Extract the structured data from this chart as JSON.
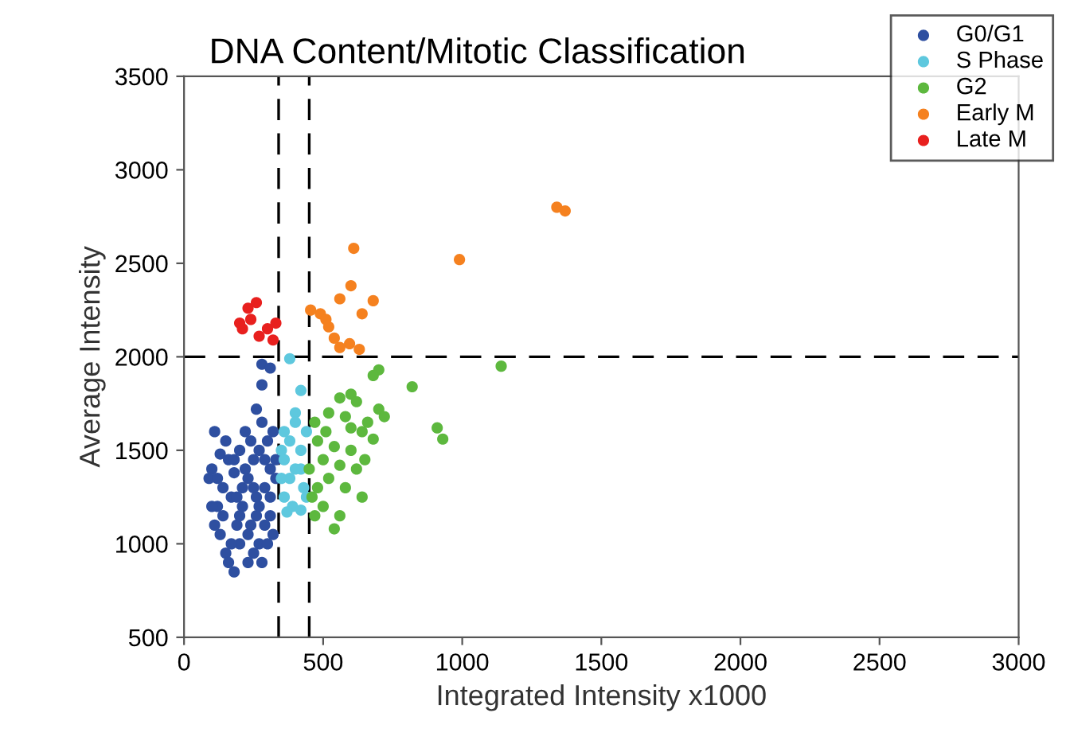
{
  "chart_data": {
    "type": "scatter",
    "title": "DNA Content/Mitotic Classification",
    "xlabel": "Integrated Intensity x1000",
    "ylabel": "Average Intensity",
    "xlim": [
      0,
      3000
    ],
    "xticks": [
      0,
      500,
      1000,
      1500,
      2000,
      2500,
      3000
    ],
    "ylim": [
      500,
      3500
    ],
    "yticks": [
      500,
      1000,
      1500,
      2000,
      2500,
      3000,
      3500
    ],
    "grid": false,
    "legend": "top right",
    "marker": "circle",
    "ref_lines": [
      {
        "axis": "x",
        "value": 340,
        "label": null,
        "color": "#000000",
        "line_style": "dashed"
      },
      {
        "axis": "x",
        "value": 450,
        "label": null,
        "color": "#000000",
        "line_style": "dashed"
      },
      {
        "axis": "y",
        "value": 2000,
        "label": null,
        "color": "#000000",
        "line_style": "dashed"
      }
    ],
    "series": [
      {
        "name": "G0/G1",
        "color": "#2e4fa0",
        "x": [
          280,
          310,
          280,
          260,
          280,
          100,
          90,
          130,
          150,
          110,
          160,
          200,
          180,
          120,
          140,
          170,
          220,
          240,
          210,
          250,
          190,
          230,
          270,
          300,
          320,
          310,
          260,
          290,
          330,
          200,
          150,
          130,
          110,
          100,
          160,
          180,
          230,
          250,
          270,
          290,
          310,
          320,
          210,
          240,
          140,
          170,
          190,
          260,
          280,
          300,
          220,
          250,
          120,
          200,
          230,
          270,
          310,
          330,
          180,
          290
        ],
        "values": [
          1960,
          1940,
          1850,
          1720,
          1650,
          1400,
          1350,
          1480,
          1550,
          1600,
          1450,
          1500,
          1380,
          1200,
          1150,
          1250,
          1600,
          1550,
          1300,
          1450,
          1100,
          1350,
          1500,
          1550,
          1600,
          1400,
          1250,
          1300,
          1450,
          1000,
          950,
          1050,
          1100,
          1200,
          900,
          850,
          900,
          950,
          1000,
          1100,
          1150,
          1050,
          1200,
          1100,
          1300,
          1000,
          1250,
          1150,
          900,
          1000,
          1400,
          1300,
          1350,
          1150,
          1050,
          1200,
          1250,
          1350,
          1450,
          1450
        ]
      },
      {
        "name": "S Phase",
        "color": "#5ec8de",
        "x": [
          380,
          420,
          400,
          360,
          380,
          420,
          360,
          400,
          380,
          430,
          360,
          390,
          420,
          370,
          400,
          440,
          350,
          420,
          440,
          350
        ],
        "values": [
          1990,
          1820,
          1700,
          1600,
          1550,
          1500,
          1450,
          1400,
          1350,
          1300,
          1250,
          1200,
          1180,
          1170,
          1650,
          1600,
          1500,
          1400,
          1250,
          1350
        ]
      },
      {
        "name": "G2",
        "color": "#5db83e",
        "x": [
          1140,
          700,
          680,
          820,
          910,
          930,
          600,
          560,
          620,
          520,
          580,
          660,
          700,
          640,
          480,
          540,
          600,
          680,
          500,
          560,
          620,
          520,
          480,
          580,
          640,
          500,
          560,
          540,
          460,
          470,
          510,
          600,
          720,
          450,
          470,
          650
        ],
        "values": [
          1950,
          1930,
          1900,
          1840,
          1620,
          1560,
          1800,
          1780,
          1760,
          1700,
          1680,
          1650,
          1720,
          1600,
          1550,
          1520,
          1500,
          1560,
          1450,
          1420,
          1400,
          1350,
          1300,
          1300,
          1250,
          1200,
          1150,
          1080,
          1250,
          1650,
          1600,
          1620,
          1680,
          1400,
          1150,
          1450
        ]
      },
      {
        "name": "Early M",
        "color": "#f5811f",
        "x": [
          1340,
          1370,
          990,
          610,
          600,
          560,
          680,
          640,
          490,
          520,
          540,
          595,
          630,
          560,
          455,
          510
        ],
        "values": [
          2800,
          2780,
          2520,
          2580,
          2380,
          2310,
          2300,
          2230,
          2230,
          2160,
          2100,
          2070,
          2040,
          2050,
          2250,
          2200
        ]
      },
      {
        "name": "Late M",
        "color": "#e8201e",
        "x": [
          230,
          260,
          210,
          240,
          300,
          330,
          320,
          270,
          200
        ],
        "values": [
          2260,
          2290,
          2150,
          2200,
          2150,
          2180,
          2090,
          2110,
          2180
        ]
      }
    ]
  }
}
